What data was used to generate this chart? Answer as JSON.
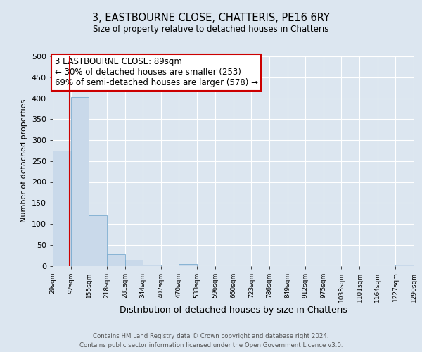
{
  "title": "3, EASTBOURNE CLOSE, CHATTERIS, PE16 6RY",
  "subtitle": "Size of property relative to detached houses in Chatteris",
  "xlabel": "Distribution of detached houses by size in Chatteris",
  "ylabel": "Number of detached properties",
  "bin_edges": [
    29,
    92,
    155,
    218,
    281,
    344,
    407,
    470,
    533,
    596,
    660,
    723,
    786,
    849,
    912,
    975,
    1038,
    1101,
    1164,
    1227,
    1290
  ],
  "bar_heights": [
    275,
    403,
    120,
    27,
    14,
    3,
    0,
    4,
    0,
    0,
    0,
    0,
    0,
    0,
    0,
    0,
    0,
    0,
    0,
    3
  ],
  "bar_color": "#c9d9ea",
  "bar_edgecolor": "#7bacd0",
  "property_line_x": 89,
  "property_line_color": "#cc0000",
  "ylim": [
    0,
    500
  ],
  "yticks": [
    0,
    50,
    100,
    150,
    200,
    250,
    300,
    350,
    400,
    450,
    500
  ],
  "annotation_box_text": "3 EASTBOURNE CLOSE: 89sqm\n← 30% of detached houses are smaller (253)\n69% of semi-detached houses are larger (578) →",
  "annotation_box_facecolor": "white",
  "annotation_box_edgecolor": "#cc0000",
  "footer_line1": "Contains HM Land Registry data © Crown copyright and database right 2024.",
  "footer_line2": "Contains public sector information licensed under the Open Government Licence v3.0.",
  "background_color": "#dce6f0",
  "plot_background_color": "#dce6f0",
  "grid_color": "white",
  "tick_labels": [
    "29sqm",
    "92sqm",
    "155sqm",
    "218sqm",
    "281sqm",
    "344sqm",
    "407sqm",
    "470sqm",
    "533sqm",
    "596sqm",
    "660sqm",
    "723sqm",
    "786sqm",
    "849sqm",
    "912sqm",
    "975sqm",
    "1038sqm",
    "1101sqm",
    "1164sqm",
    "1227sqm",
    "1290sqm"
  ]
}
